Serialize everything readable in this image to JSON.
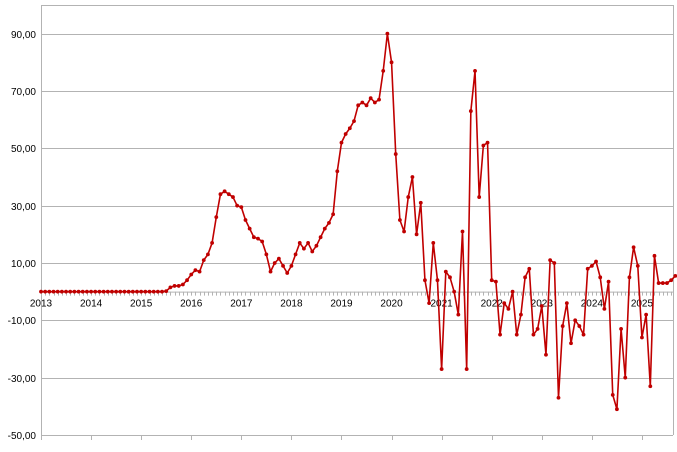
{
  "chart_data": {
    "type": "line",
    "title": "",
    "xlabel": "",
    "ylabel": "",
    "ylim": [
      -50,
      100
    ],
    "y_ticks": [
      "90,00",
      "70,00",
      "50,00",
      "30,00",
      "10,00",
      "-10,00",
      "-30,00",
      "-50,00"
    ],
    "y_tick_values": [
      90,
      70,
      50,
      30,
      10,
      -10,
      -30,
      -50
    ],
    "x_tick_labels": [
      "2013",
      "2014",
      "2015",
      "2016",
      "2017",
      "2018",
      "2019",
      "2020",
      "2021",
      "2022",
      "2023",
      "2024",
      "2025"
    ],
    "grid": true,
    "legend": "none",
    "color": "#c00000",
    "series": [
      {
        "x_start": "2013-01",
        "frequency": "monthly",
        "values": [
          0,
          0,
          0,
          0,
          0,
          0,
          0,
          0,
          0,
          0,
          0,
          0,
          0,
          0,
          0,
          0,
          0,
          0,
          0,
          0,
          0,
          0,
          0,
          0,
          0,
          0,
          0,
          0,
          0,
          0,
          0.2,
          1.5,
          2,
          2,
          2.5,
          4,
          6,
          7.5,
          7,
          11,
          13,
          17,
          26,
          34,
          35,
          34,
          33,
          30,
          29.5,
          25,
          22,
          19,
          18.5,
          17.5,
          13,
          7,
          10,
          11.5,
          9,
          6.5,
          9,
          13,
          17,
          15,
          17,
          14,
          16,
          19,
          22,
          24,
          27,
          42,
          52,
          55,
          57,
          59.5,
          65,
          66,
          65,
          67.5,
          66,
          67,
          77,
          90,
          80,
          48,
          25,
          21,
          33,
          40,
          20,
          31,
          4,
          -4,
          17,
          4,
          -27,
          7,
          5,
          0,
          -8,
          21,
          -27,
          63,
          77,
          33,
          51,
          52,
          4,
          3.5,
          -15,
          -4,
          -6,
          0,
          -15,
          -8,
          5,
          8,
          -15,
          -13,
          -5,
          -22,
          11,
          10,
          -37,
          -12,
          -4,
          -18,
          -10,
          -12,
          -15,
          8,
          9,
          10.5,
          5,
          -6,
          3.5,
          -36,
          -41,
          -13,
          -30,
          5,
          15.5,
          9,
          -16,
          -8,
          -33,
          12.5,
          3,
          3,
          3,
          4,
          5.5
        ]
      }
    ]
  }
}
